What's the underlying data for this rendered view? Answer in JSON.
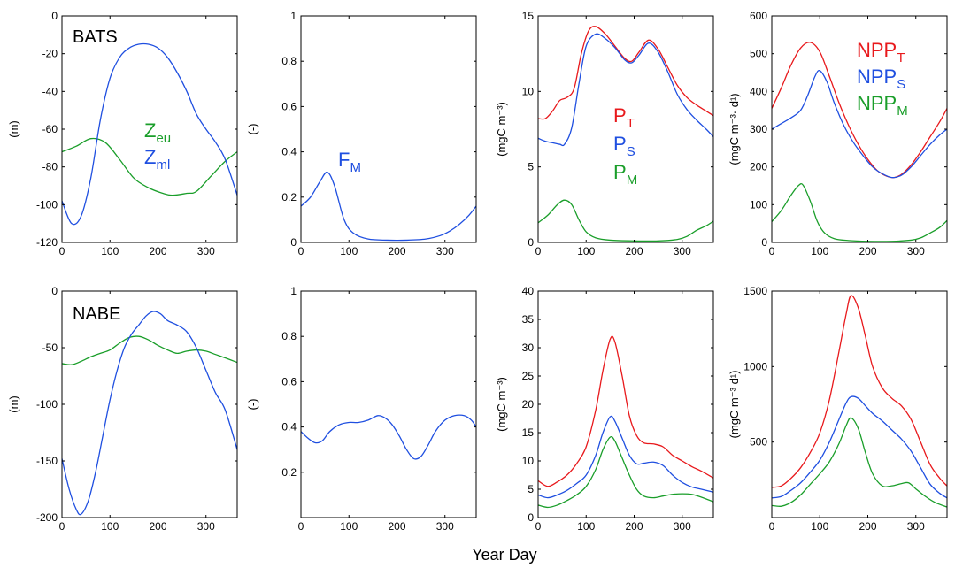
{
  "figure": {
    "xlabel": "Year Day"
  },
  "colors": {
    "red": "#e8191c",
    "blue": "#1f4fe0",
    "green": "#1a9e2a"
  },
  "chart_data": [
    {
      "id": "bats-depth",
      "type": "line",
      "annotation": "BATS",
      "ylabel": "(m)",
      "xlim": [
        0,
        365
      ],
      "ylim": [
        -120,
        0
      ],
      "xticks": [
        0,
        100,
        200,
        300
      ],
      "yticks": [
        -120,
        -100,
        -80,
        -60,
        -40,
        -20,
        0
      ],
      "legend": [
        {
          "base": "Z",
          "sub": "eu",
          "color": "#1a9e2a"
        },
        {
          "base": "Z",
          "sub": "ml",
          "color": "#1f4fe0"
        }
      ],
      "series": [
        {
          "key": "Zeu",
          "color": "#1a9e2a",
          "x": [
            0,
            30,
            60,
            90,
            120,
            150,
            180,
            210,
            230,
            260,
            280,
            310,
            340,
            365
          ],
          "y": [
            -72,
            -69,
            -65,
            -67,
            -76,
            -86,
            -91,
            -94,
            -95,
            -94,
            -93,
            -85,
            -77,
            -72
          ]
        },
        {
          "key": "Zml",
          "color": "#1f4fe0",
          "x": [
            0,
            20,
            40,
            60,
            80,
            100,
            120,
            140,
            160,
            180,
            200,
            220,
            240,
            260,
            280,
            300,
            320,
            340,
            365
          ],
          "y": [
            -98,
            -110,
            -106,
            -86,
            -55,
            -33,
            -22,
            -17,
            -15,
            -15,
            -17,
            -22,
            -30,
            -40,
            -52,
            -60,
            -67,
            -76,
            -95
          ]
        }
      ]
    },
    {
      "id": "bats-fm",
      "type": "line",
      "ylabel": "(-)",
      "xlim": [
        0,
        365
      ],
      "ylim": [
        0,
        1
      ],
      "xticks": [
        0,
        100,
        200,
        300
      ],
      "yticks": [
        0,
        0.2,
        0.4,
        0.6,
        0.8,
        1
      ],
      "legend": [
        {
          "base": "F",
          "sub": "M",
          "color": "#1f4fe0"
        }
      ],
      "series": [
        {
          "key": "FM",
          "color": "#1f4fe0",
          "x": [
            0,
            20,
            40,
            55,
            70,
            90,
            110,
            140,
            180,
            220,
            260,
            290,
            310,
            330,
            350,
            365
          ],
          "y": [
            0.16,
            0.2,
            0.27,
            0.31,
            0.25,
            0.1,
            0.04,
            0.015,
            0.01,
            0.01,
            0.015,
            0.03,
            0.05,
            0.08,
            0.12,
            0.16
          ]
        }
      ]
    },
    {
      "id": "bats-conc",
      "type": "line",
      "ylabel": "(mgC m⁻³)",
      "xlim": [
        0,
        365
      ],
      "ylim": [
        0,
        15
      ],
      "xticks": [
        0,
        100,
        200,
        300
      ],
      "yticks": [
        0,
        5,
        10,
        15
      ],
      "legend": [
        {
          "base": "P",
          "sub": "T",
          "color": "#e8191c"
        },
        {
          "base": "P",
          "sub": "S",
          "color": "#1f4fe0"
        },
        {
          "base": "P",
          "sub": "M",
          "color": "#1a9e2a"
        }
      ],
      "series": [
        {
          "key": "PT",
          "color": "#e8191c",
          "x": [
            0,
            15,
            30,
            45,
            60,
            75,
            90,
            105,
            120,
            140,
            160,
            180,
            195,
            210,
            230,
            250,
            270,
            290,
            310,
            330,
            350,
            365
          ],
          "y": [
            8.2,
            8.2,
            8.7,
            9.4,
            9.6,
            10.2,
            12.5,
            14.0,
            14.3,
            13.8,
            13.0,
            12.2,
            12.0,
            12.6,
            13.4,
            12.8,
            11.6,
            10.4,
            9.6,
            9.1,
            8.7,
            8.4
          ]
        },
        {
          "key": "PS",
          "color": "#1f4fe0",
          "x": [
            0,
            15,
            30,
            45,
            55,
            70,
            85,
            100,
            120,
            140,
            160,
            180,
            195,
            210,
            230,
            250,
            270,
            290,
            310,
            330,
            350,
            365
          ],
          "y": [
            6.9,
            6.7,
            6.6,
            6.5,
            6.5,
            7.6,
            10.5,
            13.0,
            13.8,
            13.5,
            12.9,
            12.1,
            11.9,
            12.4,
            13.2,
            12.6,
            11.3,
            9.8,
            8.8,
            8.1,
            7.5,
            7.0
          ]
        },
        {
          "key": "PM",
          "color": "#1a9e2a",
          "x": [
            0,
            20,
            40,
            55,
            70,
            85,
            100,
            120,
            150,
            200,
            250,
            290,
            310,
            330,
            350,
            365
          ],
          "y": [
            1.3,
            1.8,
            2.5,
            2.8,
            2.5,
            1.5,
            0.7,
            0.3,
            0.15,
            0.1,
            0.1,
            0.2,
            0.4,
            0.8,
            1.1,
            1.4
          ]
        }
      ]
    },
    {
      "id": "bats-npp",
      "type": "line",
      "ylabel": "(mgC m⁻³· d¹)",
      "xlim": [
        0,
        365
      ],
      "ylim": [
        0,
        600
      ],
      "xticks": [
        0,
        100,
        200,
        300
      ],
      "yticks": [
        0,
        100,
        200,
        300,
        400,
        500,
        600
      ],
      "legend": [
        {
          "base": "NPP",
          "sub": "T",
          "color": "#e8191c"
        },
        {
          "base": "NPP",
          "sub": "S",
          "color": "#1f4fe0"
        },
        {
          "base": "NPP",
          "sub": "M",
          "color": "#1a9e2a"
        }
      ],
      "series": [
        {
          "key": "NPPT",
          "color": "#e8191c",
          "x": [
            0,
            20,
            40,
            60,
            80,
            100,
            120,
            140,
            160,
            180,
            200,
            220,
            240,
            255,
            270,
            290,
            310,
            330,
            350,
            365
          ],
          "y": [
            355,
            410,
            470,
            515,
            530,
            505,
            440,
            370,
            310,
            260,
            220,
            190,
            175,
            172,
            180,
            205,
            240,
            280,
            320,
            355
          ]
        },
        {
          "key": "NPPS",
          "color": "#1f4fe0",
          "x": [
            0,
            20,
            40,
            60,
            75,
            90,
            100,
            115,
            130,
            150,
            170,
            190,
            210,
            230,
            250,
            270,
            290,
            310,
            330,
            350,
            365
          ],
          "y": [
            300,
            315,
            330,
            350,
            390,
            440,
            455,
            425,
            370,
            310,
            265,
            230,
            200,
            182,
            172,
            178,
            200,
            230,
            260,
            285,
            300
          ]
        },
        {
          "key": "NPPM",
          "color": "#1a9e2a",
          "x": [
            0,
            20,
            40,
            55,
            65,
            80,
            95,
            110,
            130,
            160,
            200,
            250,
            290,
            310,
            330,
            350,
            365
          ],
          "y": [
            55,
            85,
            125,
            150,
            152,
            110,
            55,
            25,
            10,
            5,
            3,
            3,
            6,
            12,
            25,
            40,
            58
          ]
        }
      ]
    },
    {
      "id": "nabe-depth",
      "type": "line",
      "annotation": "NABE",
      "ylabel": "(m)",
      "xlim": [
        0,
        365
      ],
      "ylim": [
        -200,
        0
      ],
      "xticks": [
        0,
        100,
        200,
        300
      ],
      "yticks": [
        -200,
        -150,
        -100,
        -50,
        0
      ],
      "legend": [],
      "series": [
        {
          "key": "Zeu",
          "color": "#1a9e2a",
          "x": [
            0,
            20,
            40,
            60,
            80,
            100,
            120,
            140,
            160,
            180,
            200,
            220,
            240,
            260,
            280,
            300,
            320,
            340,
            365
          ],
          "y": [
            -64,
            -65,
            -62,
            -58,
            -55,
            -52,
            -46,
            -41,
            -40,
            -43,
            -48,
            -52,
            -55,
            -53,
            -52,
            -53,
            -56,
            -59,
            -63
          ]
        },
        {
          "key": "Zml",
          "color": "#1f4fe0",
          "x": [
            0,
            15,
            30,
            40,
            55,
            70,
            85,
            100,
            115,
            130,
            145,
            160,
            175,
            190,
            205,
            220,
            240,
            260,
            280,
            300,
            320,
            340,
            365
          ],
          "y": [
            -148,
            -175,
            -193,
            -197,
            -185,
            -160,
            -128,
            -96,
            -70,
            -50,
            -38,
            -30,
            -22,
            -18,
            -20,
            -26,
            -30,
            -36,
            -50,
            -70,
            -90,
            -105,
            -140
          ]
        }
      ]
    },
    {
      "id": "nabe-fm",
      "type": "line",
      "ylabel": "(-)",
      "xlim": [
        0,
        365
      ],
      "ylim": [
        0,
        1
      ],
      "xticks": [
        0,
        100,
        200,
        300
      ],
      "yticks": [
        0.2,
        0.4,
        0.6,
        0.8,
        1
      ],
      "legend": [],
      "series": [
        {
          "key": "FM",
          "color": "#1f4fe0",
          "x": [
            0,
            15,
            30,
            45,
            60,
            80,
            100,
            120,
            140,
            160,
            175,
            190,
            205,
            220,
            235,
            250,
            265,
            280,
            300,
            320,
            340,
            355,
            365
          ],
          "y": [
            0.38,
            0.35,
            0.33,
            0.34,
            0.38,
            0.41,
            0.42,
            0.42,
            0.43,
            0.45,
            0.44,
            0.41,
            0.36,
            0.3,
            0.26,
            0.27,
            0.32,
            0.38,
            0.43,
            0.45,
            0.45,
            0.43,
            0.4
          ]
        }
      ]
    },
    {
      "id": "nabe-conc",
      "type": "line",
      "ylabel": "(mgC m⁻³)",
      "xlim": [
        0,
        365
      ],
      "ylim": [
        0,
        40
      ],
      "xticks": [
        0,
        100,
        200,
        300
      ],
      "yticks": [
        0,
        5,
        10,
        15,
        20,
        25,
        30,
        35,
        40
      ],
      "legend": [],
      "series": [
        {
          "key": "PT",
          "color": "#e8191c",
          "x": [
            0,
            20,
            40,
            60,
            80,
            100,
            120,
            135,
            150,
            160,
            175,
            190,
            205,
            220,
            240,
            260,
            280,
            300,
            320,
            340,
            365
          ],
          "y": [
            6.5,
            5.5,
            6.3,
            7.5,
            9.5,
            12.5,
            19,
            26,
            31.5,
            31,
            25,
            18,
            14.5,
            13.2,
            13,
            12.5,
            11,
            10,
            9,
            8.2,
            7
          ]
        },
        {
          "key": "PS",
          "color": "#1f4fe0",
          "x": [
            0,
            20,
            40,
            60,
            80,
            100,
            120,
            135,
            150,
            160,
            175,
            190,
            205,
            220,
            240,
            260,
            280,
            300,
            320,
            340,
            365
          ],
          "y": [
            4,
            3.5,
            4,
            4.8,
            6,
            7.5,
            11,
            15,
            17.8,
            17,
            14,
            11,
            9.5,
            9.6,
            9.8,
            9.2,
            7.5,
            6.2,
            5.4,
            5,
            4.5
          ]
        },
        {
          "key": "PM",
          "color": "#1a9e2a",
          "x": [
            0,
            20,
            40,
            60,
            80,
            100,
            120,
            135,
            150,
            160,
            175,
            190,
            205,
            220,
            240,
            260,
            280,
            300,
            320,
            340,
            365
          ],
          "y": [
            2.2,
            1.8,
            2.2,
            3,
            4,
            5.5,
            8.5,
            12,
            14.2,
            13.5,
            10.5,
            7.5,
            5,
            3.8,
            3.5,
            3.8,
            4.1,
            4.2,
            4.1,
            3.6,
            2.8
          ]
        }
      ]
    },
    {
      "id": "nabe-npp",
      "type": "line",
      "ylabel": "(mgC m⁻³ d¹)",
      "xlim": [
        0,
        365
      ],
      "ylim": [
        0,
        1500
      ],
      "xticks": [
        0,
        100,
        200,
        300
      ],
      "yticks": [
        500,
        1000,
        1500
      ],
      "legend": [],
      "series": [
        {
          "key": "NPPT",
          "color": "#e8191c",
          "x": [
            0,
            20,
            40,
            60,
            80,
            100,
            120,
            140,
            155,
            165,
            180,
            195,
            210,
            230,
            250,
            270,
            290,
            310,
            330,
            350,
            365
          ],
          "y": [
            200,
            210,
            260,
            330,
            430,
            560,
            780,
            1100,
            1350,
            1470,
            1390,
            1200,
            1000,
            860,
            790,
            740,
            650,
            500,
            350,
            260,
            210
          ]
        },
        {
          "key": "NPPS",
          "color": "#1f4fe0",
          "x": [
            0,
            20,
            40,
            60,
            80,
            100,
            120,
            140,
            155,
            165,
            180,
            195,
            210,
            230,
            250,
            270,
            290,
            310,
            330,
            350,
            365
          ],
          "y": [
            130,
            140,
            180,
            230,
            300,
            380,
            500,
            650,
            760,
            800,
            790,
            740,
            690,
            640,
            580,
            520,
            440,
            330,
            220,
            160,
            130
          ]
        },
        {
          "key": "NPPM",
          "color": "#1a9e2a",
          "x": [
            0,
            20,
            40,
            60,
            80,
            100,
            120,
            140,
            155,
            165,
            180,
            195,
            210,
            230,
            250,
            270,
            285,
            300,
            320,
            340,
            365
          ],
          "y": [
            80,
            75,
            100,
            150,
            220,
            290,
            370,
            490,
            610,
            660,
            590,
            430,
            290,
            210,
            210,
            225,
            230,
            190,
            140,
            100,
            70
          ]
        }
      ]
    }
  ]
}
